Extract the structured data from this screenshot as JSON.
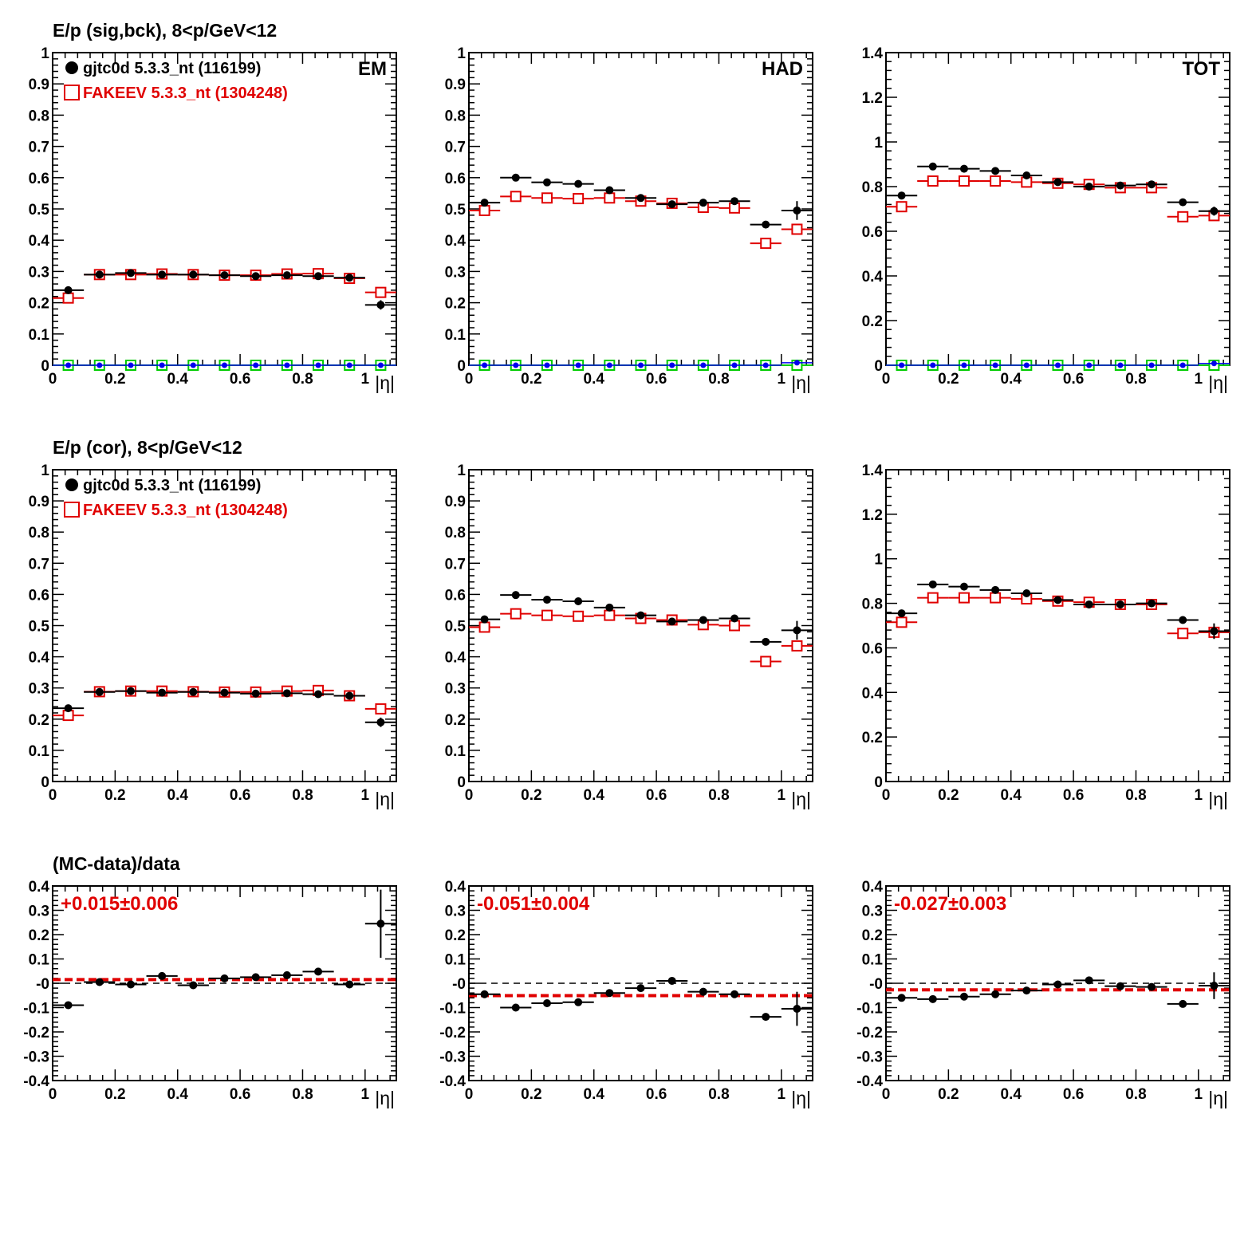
{
  "colors": {
    "data": "#000000",
    "mc": "#e00000",
    "green": "#00cc00",
    "blue": "#0000ee",
    "fit": "#e00000",
    "ref": "#000000"
  },
  "chart_data": [
    {
      "type": "scatter",
      "id": "sig-em",
      "title": "E/p (sig,bck),  8<p/GeV<12",
      "corner_label": "EM",
      "xlabel": "|η|",
      "xlim": [
        0,
        1.1
      ],
      "ylim": [
        0,
        1
      ],
      "xticks": [
        "0",
        "0.2",
        "0.4",
        "0.6",
        "0.8",
        "1"
      ],
      "yticks": [
        "0",
        "0.1",
        "0.2",
        "0.3",
        "0.4",
        "0.5",
        "0.6",
        "0.7",
        "0.8",
        "0.9",
        "1"
      ],
      "legend": [
        "gjtc0d 5.3.3_nt (116199)",
        "FAKEEV 5.3.3_nt (1304248)"
      ],
      "x": [
        0.05,
        0.15,
        0.25,
        0.35,
        0.45,
        0.55,
        0.65,
        0.75,
        0.85,
        0.95,
        1.05
      ],
      "series": [
        {
          "name": "gjtc0d 5.3.3_nt (116199)",
          "marker": "dot",
          "values": [
            0.24,
            0.29,
            0.295,
            0.29,
            0.29,
            0.288,
            0.285,
            0.288,
            0.285,
            0.28,
            0.193
          ],
          "errors": [
            0,
            0,
            0,
            0,
            0,
            0,
            0,
            0,
            0,
            0,
            0.015
          ]
        },
        {
          "name": "FAKEEV 5.3.3_nt (1304248)",
          "marker": "square",
          "values": [
            0.215,
            0.29,
            0.29,
            0.292,
            0.29,
            0.288,
            0.288,
            0.292,
            0.293,
            0.278,
            0.233
          ],
          "errors": [
            0,
            0,
            0,
            0,
            0,
            0,
            0,
            0,
            0,
            0,
            0
          ]
        },
        {
          "marker": "green-square",
          "values": [
            0,
            0,
            0,
            0,
            0,
            0,
            0,
            0,
            0,
            0,
            0
          ],
          "errors": [
            0,
            0,
            0,
            0,
            0,
            0,
            0,
            0,
            0,
            0,
            0
          ]
        },
        {
          "marker": "blue-dot",
          "values": [
            0,
            0,
            0,
            0,
            0,
            0,
            0,
            0,
            0,
            0,
            0
          ],
          "errors": [
            0,
            0,
            0,
            0,
            0,
            0,
            0,
            0,
            0,
            0,
            0
          ]
        }
      ]
    },
    {
      "type": "scatter",
      "id": "sig-had",
      "title": "",
      "corner_label": "HAD",
      "xlabel": "|η|",
      "xlim": [
        0,
        1.1
      ],
      "ylim": [
        0,
        1
      ],
      "xticks": [
        "0",
        "0.2",
        "0.4",
        "0.6",
        "0.8",
        "1"
      ],
      "yticks": [
        "0",
        "0.1",
        "0.2",
        "0.3",
        "0.4",
        "0.5",
        "0.6",
        "0.7",
        "0.8",
        "0.9",
        "1"
      ],
      "legend": [],
      "x": [
        0.05,
        0.15,
        0.25,
        0.35,
        0.45,
        0.55,
        0.65,
        0.75,
        0.85,
        0.95,
        1.05
      ],
      "series": [
        {
          "name": "",
          "marker": "dot",
          "values": [
            0.52,
            0.6,
            0.585,
            0.58,
            0.56,
            0.535,
            0.515,
            0.52,
            0.525,
            0.45,
            0.495
          ],
          "errors": [
            0,
            0,
            0,
            0,
            0,
            0,
            0,
            0,
            0,
            0,
            0.03
          ]
        },
        {
          "name": "",
          "marker": "square",
          "values": [
            0.495,
            0.54,
            0.535,
            0.533,
            0.535,
            0.525,
            0.518,
            0.505,
            0.503,
            0.39,
            0.435
          ],
          "errors": [
            0,
            0,
            0,
            0,
            0,
            0,
            0,
            0,
            0,
            0,
            0
          ]
        },
        {
          "marker": "green-square",
          "values": [
            0,
            0,
            0,
            0,
            0,
            0,
            0,
            0,
            0,
            0,
            0
          ],
          "errors": [
            0,
            0,
            0,
            0,
            0,
            0,
            0,
            0,
            0,
            0,
            0
          ]
        },
        {
          "marker": "blue-dot",
          "values": [
            0,
            0,
            0,
            0,
            0,
            0,
            0,
            0,
            0,
            0,
            0.008
          ],
          "errors": [
            0,
            0,
            0,
            0,
            0,
            0,
            0,
            0,
            0,
            0,
            0
          ]
        }
      ]
    },
    {
      "type": "scatter",
      "id": "sig-tot",
      "title": "",
      "corner_label": "TOT",
      "xlabel": "|η|",
      "xlim": [
        0,
        1.1
      ],
      "ylim": [
        0,
        1.4
      ],
      "xticks": [
        "0",
        "0.2",
        "0.4",
        "0.6",
        "0.8",
        "1"
      ],
      "yticks": [
        "0",
        "0.2",
        "0.4",
        "0.6",
        "0.8",
        "1",
        "1.2",
        "1.4"
      ],
      "legend": [],
      "x": [
        0.05,
        0.15,
        0.25,
        0.35,
        0.45,
        0.55,
        0.65,
        0.75,
        0.85,
        0.95,
        1.05
      ],
      "series": [
        {
          "name": "",
          "marker": "dot",
          "values": [
            0.76,
            0.89,
            0.88,
            0.87,
            0.85,
            0.82,
            0.8,
            0.805,
            0.81,
            0.73,
            0.69
          ],
          "errors": [
            0,
            0,
            0,
            0,
            0,
            0,
            0,
            0,
            0,
            0,
            0.02
          ]
        },
        {
          "name": "",
          "marker": "square",
          "values": [
            0.71,
            0.825,
            0.825,
            0.825,
            0.82,
            0.815,
            0.81,
            0.795,
            0.795,
            0.665,
            0.67
          ],
          "errors": [
            0,
            0,
            0,
            0,
            0,
            0,
            0,
            0,
            0,
            0,
            0
          ]
        },
        {
          "marker": "green-square",
          "values": [
            0,
            0,
            0,
            0,
            0,
            0,
            0,
            0,
            0,
            0,
            0
          ],
          "errors": [
            0,
            0,
            0,
            0,
            0,
            0,
            0,
            0,
            0,
            0,
            0
          ]
        },
        {
          "marker": "blue-dot",
          "values": [
            0,
            0,
            0,
            0,
            0,
            0,
            0,
            0,
            0,
            0,
            0.008
          ],
          "errors": [
            0,
            0,
            0,
            0,
            0,
            0,
            0,
            0,
            0,
            0,
            0
          ]
        }
      ]
    },
    {
      "type": "scatter",
      "id": "cor-em",
      "title": "E/p (cor),  8<p/GeV<12",
      "corner_label": "",
      "xlabel": "|η|",
      "xlim": [
        0,
        1.1
      ],
      "ylim": [
        0,
        1
      ],
      "xticks": [
        "0",
        "0.2",
        "0.4",
        "0.6",
        "0.8",
        "1"
      ],
      "yticks": [
        "0",
        "0.1",
        "0.2",
        "0.3",
        "0.4",
        "0.5",
        "0.6",
        "0.7",
        "0.8",
        "0.9",
        "1"
      ],
      "legend": [
        "gjtc0d 5.3.3_nt (116199)",
        "FAKEEV 5.3.3_nt (1304248)"
      ],
      "x": [
        0.05,
        0.15,
        0.25,
        0.35,
        0.45,
        0.55,
        0.65,
        0.75,
        0.85,
        0.95,
        1.05
      ],
      "series": [
        {
          "name": "gjtc0d 5.3.3_nt (116199)",
          "marker": "dot",
          "values": [
            0.235,
            0.287,
            0.29,
            0.285,
            0.287,
            0.285,
            0.282,
            0.283,
            0.28,
            0.275,
            0.19
          ],
          "errors": [
            0,
            0,
            0,
            0,
            0,
            0,
            0,
            0,
            0,
            0,
            0.015
          ]
        },
        {
          "name": "FAKEEV 5.3.3_nt (1304248)",
          "marker": "square",
          "values": [
            0.212,
            0.288,
            0.29,
            0.29,
            0.288,
            0.287,
            0.287,
            0.29,
            0.292,
            0.275,
            0.233
          ],
          "errors": [
            0,
            0,
            0,
            0,
            0,
            0,
            0,
            0,
            0,
            0,
            0
          ]
        }
      ]
    },
    {
      "type": "scatter",
      "id": "cor-had",
      "title": "",
      "corner_label": "",
      "xlabel": "|η|",
      "xlim": [
        0,
        1.1
      ],
      "ylim": [
        0,
        1
      ],
      "xticks": [
        "0",
        "0.2",
        "0.4",
        "0.6",
        "0.8",
        "1"
      ],
      "yticks": [
        "0",
        "0.1",
        "0.2",
        "0.3",
        "0.4",
        "0.5",
        "0.6",
        "0.7",
        "0.8",
        "0.9",
        "1"
      ],
      "legend": [],
      "x": [
        0.05,
        0.15,
        0.25,
        0.35,
        0.45,
        0.55,
        0.65,
        0.75,
        0.85,
        0.95,
        1.05
      ],
      "series": [
        {
          "name": "",
          "marker": "dot",
          "values": [
            0.52,
            0.598,
            0.583,
            0.578,
            0.558,
            0.533,
            0.513,
            0.518,
            0.523,
            0.448,
            0.485
          ],
          "errors": [
            0,
            0,
            0,
            0,
            0,
            0,
            0,
            0,
            0,
            0,
            0.03
          ]
        },
        {
          "name": "",
          "marker": "square",
          "values": [
            0.495,
            0.538,
            0.533,
            0.53,
            0.533,
            0.523,
            0.518,
            0.503,
            0.5,
            0.385,
            0.435
          ],
          "errors": [
            0,
            0,
            0,
            0,
            0,
            0,
            0,
            0,
            0,
            0,
            0
          ]
        }
      ]
    },
    {
      "type": "scatter",
      "id": "cor-tot",
      "title": "",
      "corner_label": "",
      "xlabel": "|η|",
      "xlim": [
        0,
        1.1
      ],
      "ylim": [
        0,
        1.4
      ],
      "xticks": [
        "0",
        "0.2",
        "0.4",
        "0.6",
        "0.8",
        "1"
      ],
      "yticks": [
        "0",
        "0.2",
        "0.4",
        "0.6",
        "0.8",
        "1",
        "1.2",
        "1.4"
      ],
      "legend": [],
      "x": [
        0.05,
        0.15,
        0.25,
        0.35,
        0.45,
        0.55,
        0.65,
        0.75,
        0.85,
        0.95,
        1.05
      ],
      "series": [
        {
          "name": "",
          "marker": "dot",
          "values": [
            0.755,
            0.885,
            0.875,
            0.86,
            0.845,
            0.815,
            0.795,
            0.795,
            0.8,
            0.725,
            0.675
          ],
          "errors": [
            0,
            0,
            0,
            0,
            0,
            0,
            0,
            0,
            0,
            0,
            0.035
          ]
        },
        {
          "name": "",
          "marker": "square",
          "values": [
            0.715,
            0.825,
            0.825,
            0.825,
            0.82,
            0.81,
            0.805,
            0.795,
            0.795,
            0.665,
            0.67
          ],
          "errors": [
            0,
            0,
            0,
            0,
            0,
            0,
            0,
            0,
            0,
            0,
            0
          ]
        }
      ]
    },
    {
      "type": "scatter",
      "id": "ratio-em",
      "title": "(MC-data)/data",
      "corner_label": "",
      "ratio_label": "+0.015±0.006",
      "xlabel": "|η|",
      "xlim": [
        0,
        1.1
      ],
      "ylim": [
        -0.4,
        0.4
      ],
      "xticks": [
        "0",
        "0.2",
        "0.4",
        "0.6",
        "0.8",
        "1"
      ],
      "yticks": [
        "-0.4",
        "-0.3",
        "-0.2",
        "-0.1",
        "-0",
        "0.1",
        "0.2",
        "0.3",
        "0.4"
      ],
      "legend": [],
      "x": [
        0.05,
        0.15,
        0.25,
        0.35,
        0.45,
        0.55,
        0.65,
        0.75,
        0.85,
        0.95,
        1.05
      ],
      "fit": 0.015,
      "reference": 0,
      "series": [
        {
          "name": "",
          "marker": "dot",
          "values": [
            -0.09,
            0.005,
            -0.005,
            0.03,
            -0.008,
            0.02,
            0.025,
            0.033,
            0.048,
            -0.005,
            0.245
          ],
          "errors": [
            0.012,
            0.012,
            0.008,
            0.008,
            0.008,
            0.008,
            0.008,
            0.008,
            0.008,
            0.008,
            0.14
          ]
        }
      ]
    },
    {
      "type": "scatter",
      "id": "ratio-had",
      "title": "",
      "corner_label": "",
      "ratio_label": "-0.051±0.004",
      "xlabel": "|η|",
      "xlim": [
        0,
        1.1
      ],
      "ylim": [
        -0.4,
        0.4
      ],
      "xticks": [
        "0",
        "0.2",
        "0.4",
        "0.6",
        "0.8",
        "1"
      ],
      "yticks": [
        "-0.4",
        "-0.3",
        "-0.2",
        "-0.1",
        "-0",
        "0.1",
        "0.2",
        "0.3",
        "0.4"
      ],
      "legend": [],
      "x": [
        0.05,
        0.15,
        0.25,
        0.35,
        0.45,
        0.55,
        0.65,
        0.75,
        0.85,
        0.95,
        1.05
      ],
      "fit": -0.051,
      "reference": 0,
      "series": [
        {
          "name": "",
          "marker": "dot",
          "values": [
            -0.045,
            -0.1,
            -0.082,
            -0.078,
            -0.04,
            -0.02,
            0.01,
            -0.035,
            -0.045,
            -0.138,
            -0.105
          ],
          "errors": [
            0.01,
            0.006,
            0.006,
            0.006,
            0.006,
            0.006,
            0.006,
            0.006,
            0.006,
            0.008,
            0.07
          ]
        }
      ]
    },
    {
      "type": "scatter",
      "id": "ratio-tot",
      "title": "",
      "corner_label": "",
      "ratio_label": "-0.027±0.003",
      "xlabel": "|η|",
      "xlim": [
        0,
        1.1
      ],
      "ylim": [
        -0.4,
        0.4
      ],
      "xticks": [
        "0",
        "0.2",
        "0.4",
        "0.6",
        "0.8",
        "1"
      ],
      "yticks": [
        "-0.4",
        "-0.3",
        "-0.2",
        "-0.1",
        "-0",
        "0.1",
        "0.2",
        "0.3",
        "0.4"
      ],
      "legend": [],
      "x": [
        0.05,
        0.15,
        0.25,
        0.35,
        0.45,
        0.55,
        0.65,
        0.75,
        0.85,
        0.95,
        1.05
      ],
      "fit": -0.027,
      "reference": 0,
      "series": [
        {
          "name": "",
          "marker": "dot",
          "values": [
            -0.06,
            -0.065,
            -0.055,
            -0.045,
            -0.03,
            -0.005,
            0.012,
            -0.012,
            -0.015,
            -0.085,
            -0.01
          ],
          "errors": [
            0.005,
            0.005,
            0.005,
            0.005,
            0.005,
            0.005,
            0.005,
            0.005,
            0.005,
            0.005,
            0.055
          ]
        }
      ]
    }
  ]
}
